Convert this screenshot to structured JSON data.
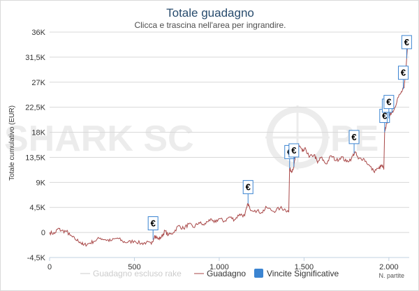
{
  "chart_data": {
    "type": "line",
    "title": "Totale guadagno",
    "subtitle": "Clicca e trascina nell'area per ingrandire.",
    "xlabel": "N. partite",
    "ylabel": "Totale cumulativo (EUR)",
    "xlim": [
      0,
      2120
    ],
    "ylim": [
      -4500,
      36000
    ],
    "x_ticks": [
      {
        "value": 0,
        "label": "0"
      },
      {
        "value": 500,
        "label": "500"
      },
      {
        "value": 1000,
        "label": "1.000"
      },
      {
        "value": 1500,
        "label": "1.500"
      },
      {
        "value": 2000,
        "label": "2.000"
      }
    ],
    "y_ticks": [
      {
        "value": -4500,
        "label": "-4,5K"
      },
      {
        "value": 0,
        "label": "0"
      },
      {
        "value": 4500,
        "label": "4,5K"
      },
      {
        "value": 9000,
        "label": "9K"
      },
      {
        "value": 13500,
        "label": "13,5K"
      },
      {
        "value": 18000,
        "label": "18K"
      },
      {
        "value": 22500,
        "label": "22,5K"
      },
      {
        "value": 27000,
        "label": "27K"
      },
      {
        "value": 31500,
        "label": "31,5K"
      },
      {
        "value": 36000,
        "label": "36K"
      }
    ],
    "grid": true,
    "legend_position": "bottom",
    "series": [
      {
        "name": "Guadagno",
        "color": "#a84747",
        "points": [
          [
            0,
            0
          ],
          [
            30,
            -200
          ],
          [
            50,
            700
          ],
          [
            70,
            300
          ],
          [
            100,
            200
          ],
          [
            120,
            -500
          ],
          [
            150,
            -1200
          ],
          [
            180,
            -1700
          ],
          [
            200,
            -2300
          ],
          [
            230,
            -2000
          ],
          [
            260,
            -1600
          ],
          [
            300,
            -1000
          ],
          [
            330,
            -1300
          ],
          [
            360,
            -1500
          ],
          [
            400,
            -1000
          ],
          [
            430,
            -1600
          ],
          [
            460,
            -1800
          ],
          [
            500,
            -1500
          ],
          [
            540,
            -2000
          ],
          [
            570,
            -1800
          ],
          [
            600,
            -2100
          ],
          [
            620,
            -500
          ],
          [
            640,
            -1200
          ],
          [
            660,
            -800
          ],
          [
            680,
            300
          ],
          [
            700,
            -500
          ],
          [
            730,
            0
          ],
          [
            760,
            1200
          ],
          [
            790,
            700
          ],
          [
            820,
            1500
          ],
          [
            850,
            900
          ],
          [
            880,
            1800
          ],
          [
            910,
            1300
          ],
          [
            940,
            2300
          ],
          [
            970,
            1800
          ],
          [
            1000,
            2500
          ],
          [
            1030,
            2000
          ],
          [
            1060,
            2800
          ],
          [
            1090,
            2300
          ],
          [
            1120,
            3300
          ],
          [
            1150,
            3000
          ],
          [
            1170,
            5200
          ],
          [
            1180,
            4300
          ],
          [
            1210,
            4000
          ],
          [
            1250,
            3600
          ],
          [
            1280,
            4500
          ],
          [
            1320,
            3800
          ],
          [
            1360,
            4400
          ],
          [
            1390,
            4100
          ],
          [
            1410,
            3700
          ],
          [
            1415,
            11500
          ],
          [
            1425,
            11000
          ],
          [
            1440,
            11800
          ],
          [
            1450,
            13800
          ],
          [
            1460,
            15000
          ],
          [
            1475,
            15500
          ],
          [
            1490,
            14500
          ],
          [
            1510,
            15000
          ],
          [
            1530,
            13500
          ],
          [
            1560,
            14000
          ],
          [
            1580,
            12500
          ],
          [
            1600,
            13500
          ],
          [
            1630,
            12300
          ],
          [
            1660,
            13800
          ],
          [
            1690,
            12900
          ],
          [
            1720,
            13600
          ],
          [
            1750,
            12700
          ],
          [
            1780,
            13300
          ],
          [
            1800,
            14500
          ],
          [
            1820,
            13200
          ],
          [
            1850,
            13300
          ],
          [
            1880,
            12200
          ],
          [
            1910,
            11000
          ],
          [
            1940,
            11500
          ],
          [
            1960,
            12000
          ],
          [
            1970,
            11300
          ],
          [
            1975,
            18000
          ],
          [
            1985,
            19500
          ],
          [
            2000,
            20500
          ],
          [
            2010,
            21500
          ],
          [
            2030,
            22000
          ],
          [
            2050,
            24000
          ],
          [
            2070,
            25000
          ],
          [
            2090,
            26000
          ],
          [
            2100,
            29000
          ],
          [
            2110,
            33500
          ]
        ]
      },
      {
        "name": "Guadagno escluso rake",
        "color": "#cccccc",
        "points": []
      }
    ],
    "flags": {
      "name": "Vincite Significative",
      "color": "#3b84d1",
      "label": "€",
      "x": [
        610,
        1170,
        1415,
        1440,
        1795,
        1975,
        1990,
        2000,
        2085,
        2105
      ]
    }
  },
  "watermark": {
    "text_left": "SHARK SC",
    "text_right": "PE"
  }
}
